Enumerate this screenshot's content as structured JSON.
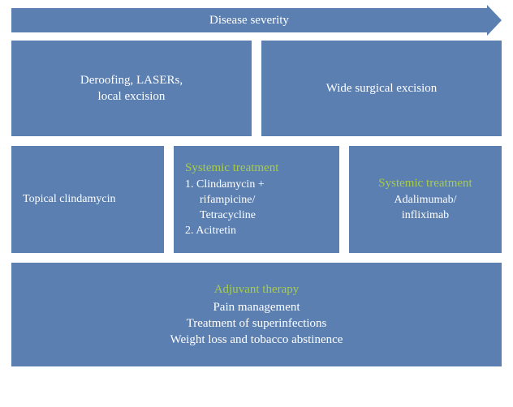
{
  "colors": {
    "box_bg": "#5a7fb0",
    "text": "#ffffff",
    "accent": "#a8cc4a",
    "page_bg": "#ffffff"
  },
  "arrow": {
    "label": "Disease severity"
  },
  "row1": {
    "left": {
      "line1": "Deroofing, LASERs,",
      "line2": "local excision"
    },
    "right": {
      "line1": "Wide surgical excision"
    }
  },
  "row2": {
    "col1": {
      "line1": "Topical clindamycin"
    },
    "col2": {
      "heading": "Systemic treatment",
      "l1": "1. Clindamycin +",
      "l1b": "rifampicine/",
      "l1c": "Tetracycline",
      "l2": "2. Acitretin"
    },
    "col3": {
      "heading": "Systemic treatment",
      "l1": "Adalimumab/",
      "l2": "infliximab"
    }
  },
  "row3": {
    "heading": "Adjuvant therapy",
    "l1": "Pain management",
    "l2": "Treatment of superinfections",
    "l3": "Weight loss and tobacco abstinence"
  }
}
